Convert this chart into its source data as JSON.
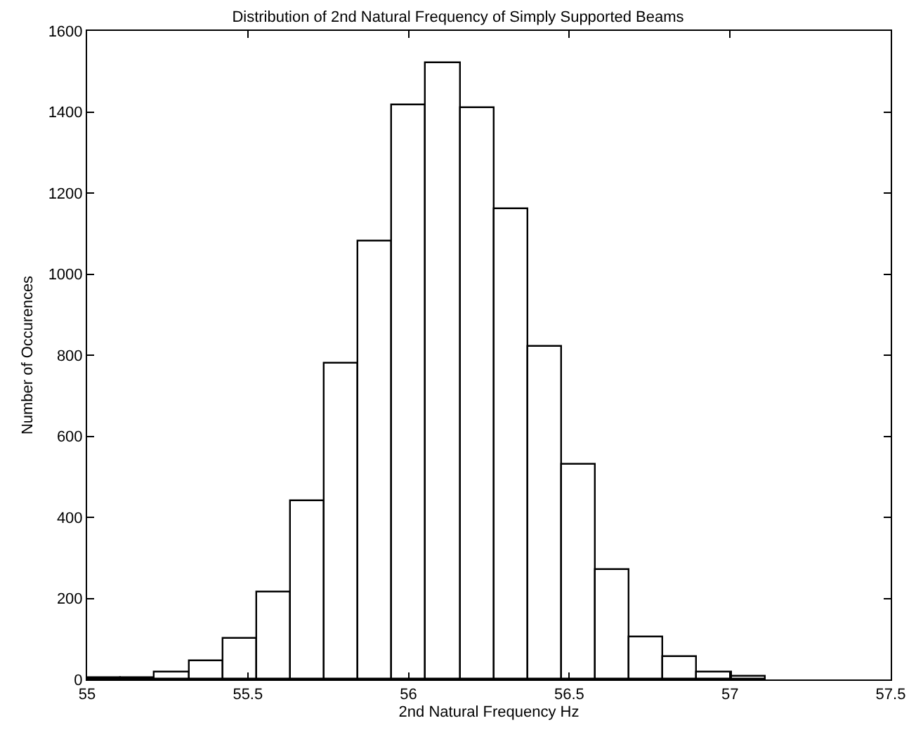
{
  "chart_data": {
    "type": "histogram",
    "title": "Distribution of 2nd Natural Frequency of Simply Supported Beams",
    "xlabel": "2nd Natural Frequency Hz",
    "ylabel": "Number of Occurences",
    "bins": [
      55,
      55.106,
      55.211,
      55.317,
      55.422,
      55.528,
      55.633,
      55.739,
      55.844,
      55.95,
      56.055,
      56.161,
      56.266,
      56.372,
      56.477,
      56.583,
      56.688,
      56.794,
      56.899,
      57.005,
      57.11
    ],
    "values": [
      2,
      5,
      17,
      45,
      100,
      215,
      440,
      780,
      1080,
      1415,
      1520,
      1410,
      1160,
      820,
      530,
      270,
      105,
      55,
      18,
      6
    ],
    "color": "#ffffff",
    "xlim": [
      55,
      57.5
    ],
    "xticks": [
      55,
      55.5,
      56,
      56.5,
      57,
      57.5
    ],
    "ylim": [
      0,
      1600
    ],
    "yticks": [
      0,
      200,
      400,
      600,
      800,
      1000,
      1200,
      1400,
      1600
    ]
  }
}
